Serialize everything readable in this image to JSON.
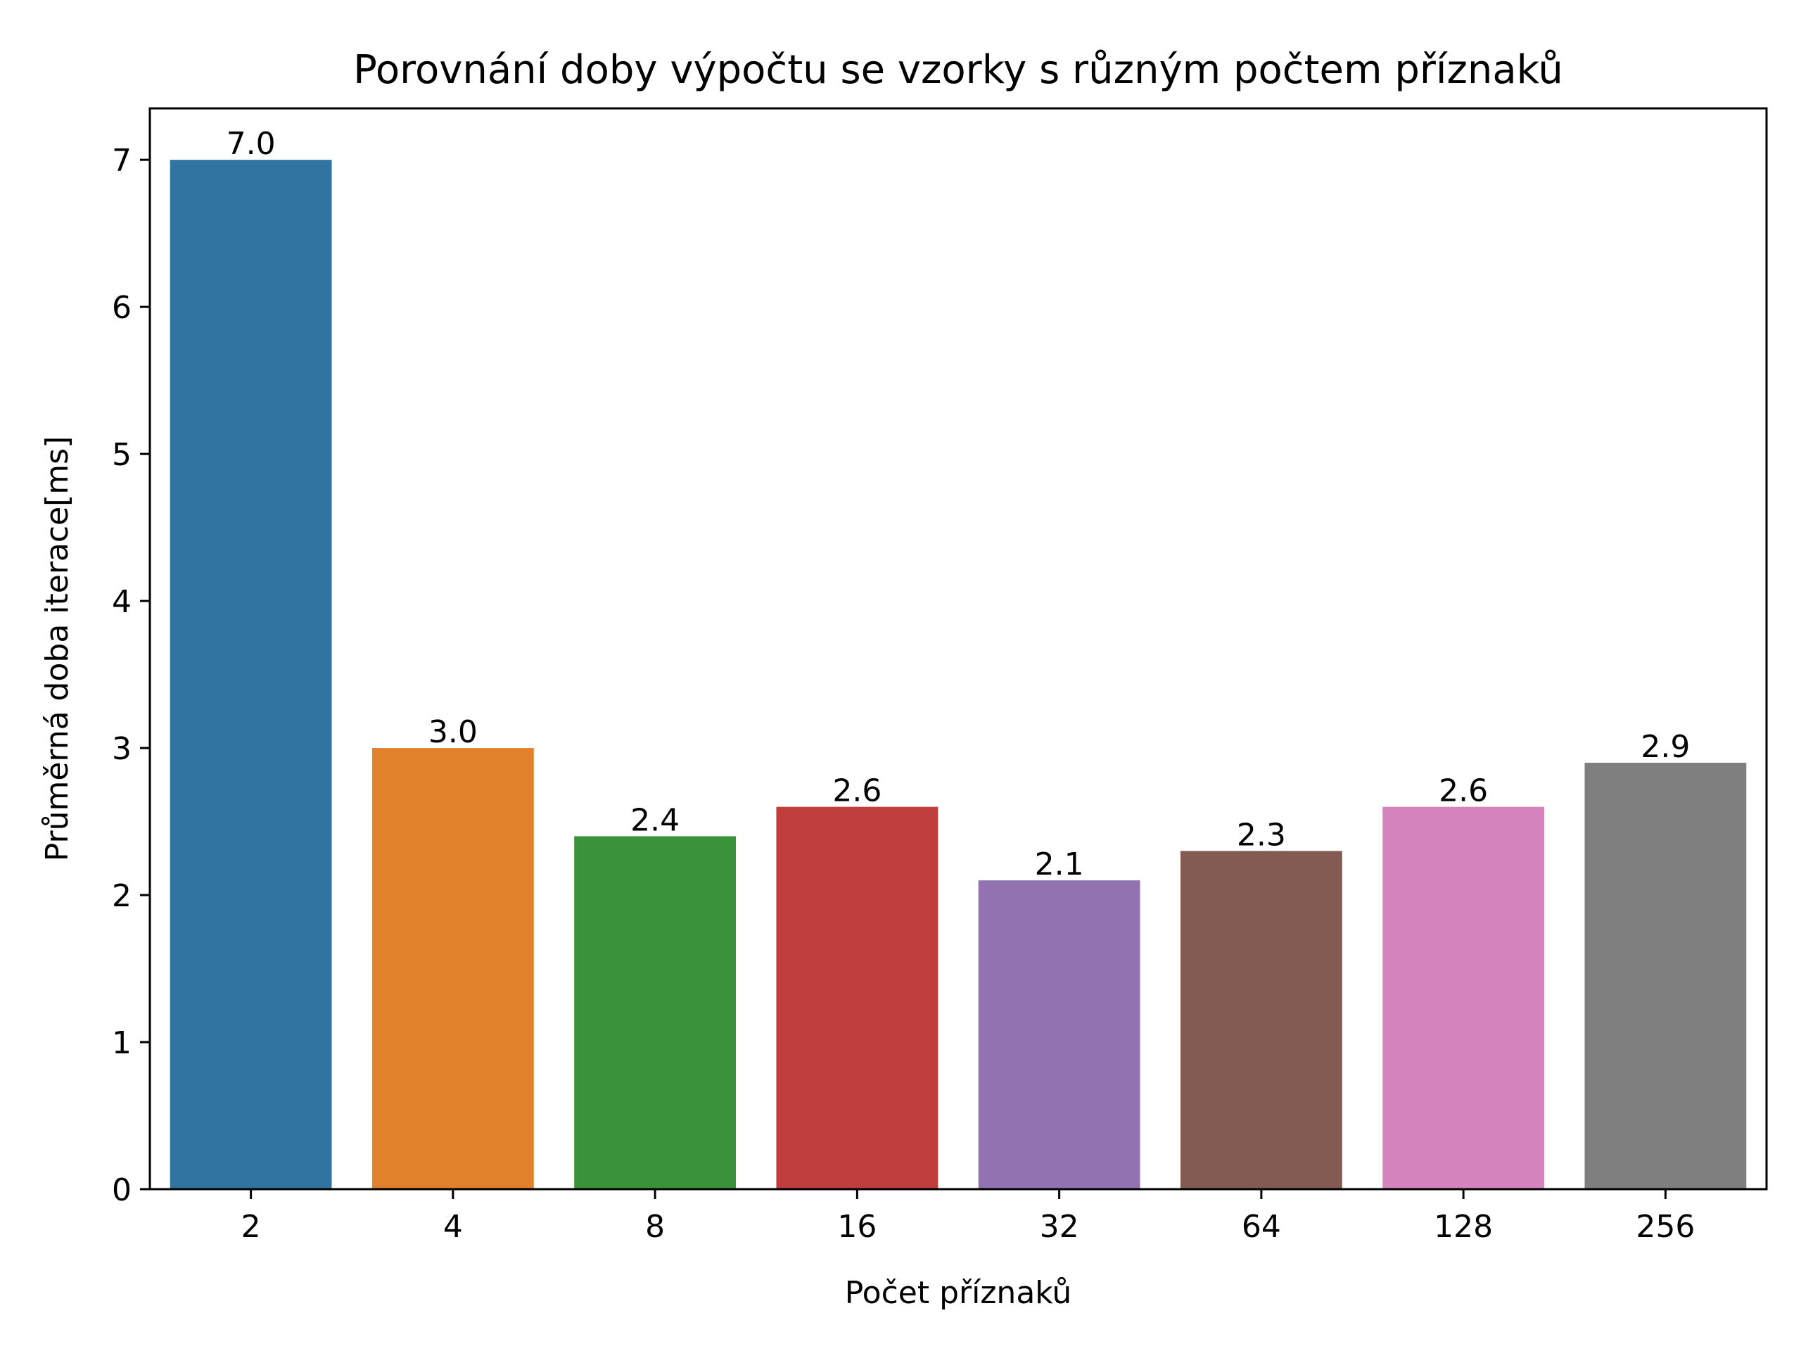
{
  "chart_data": {
    "type": "bar",
    "title": "Porovnání doby výpočtu se vzorky s různým počtem příznaků",
    "xlabel": "Počet příznaků",
    "ylabel": "Průměrná doba iterace[ms]",
    "categories": [
      "2",
      "4",
      "8",
      "16",
      "32",
      "64",
      "128",
      "256"
    ],
    "values": [
      7.0,
      3.0,
      2.4,
      2.6,
      2.1,
      2.3,
      2.6,
      2.9
    ],
    "value_labels": [
      "7.0",
      "3.0",
      "2.4",
      "2.6",
      "2.1",
      "2.3",
      "2.6",
      "2.9"
    ],
    "colors": [
      "#3274a1",
      "#e1812c",
      "#3a923a",
      "#c03d3e",
      "#9372b2",
      "#845b53",
      "#d684bd",
      "#7f7f7f"
    ],
    "yticks": [
      0,
      1,
      2,
      3,
      4,
      5,
      6,
      7
    ],
    "ylim": [
      0,
      7.35
    ],
    "grid": false,
    "legend": "none"
  }
}
